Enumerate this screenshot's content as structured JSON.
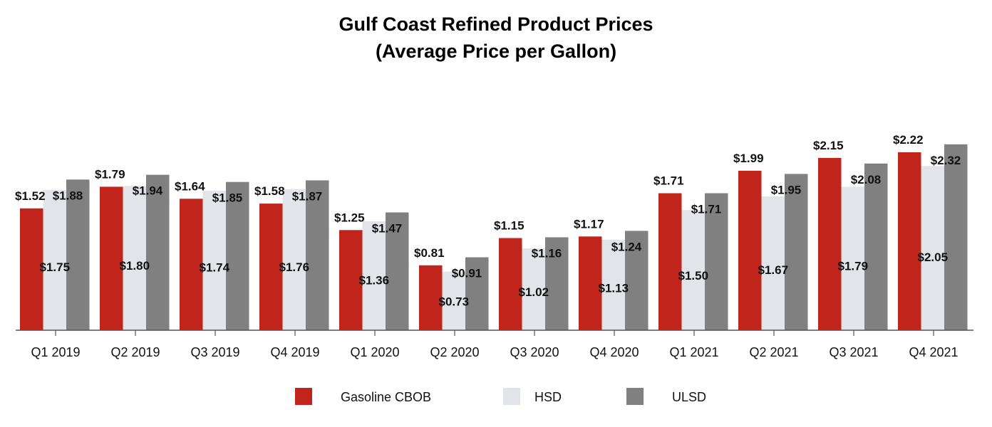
{
  "chart_data": {
    "type": "bar",
    "title": "Gulf Coast Refined Product Prices",
    "subtitle": "(Average Price per Gallon)",
    "xlabel": "",
    "ylabel": "",
    "ylim": [
      0,
      2.6
    ],
    "grid": false,
    "legend_position": "bottom",
    "categories": [
      "Q1 2019",
      "Q2 2019",
      "Q3 2019",
      "Q4 2019",
      "Q1 2020",
      "Q2 2020",
      "Q3 2020",
      "Q4 2020",
      "Q1 2021",
      "Q2 2021",
      "Q3 2021",
      "Q4 2021"
    ],
    "series": [
      {
        "name": "Gasoline CBOB",
        "color": "#c1241b",
        "values": [
          1.52,
          1.79,
          1.64,
          1.58,
          1.25,
          0.81,
          1.15,
          1.17,
          1.71,
          1.99,
          2.15,
          2.22
        ],
        "labels": [
          "$1.52",
          "$1.79",
          "$1.64",
          "$1.58",
          "$1.25",
          "$0.81",
          "$1.15",
          "$1.17",
          "$1.71",
          "$1.99",
          "$2.15",
          "$2.22"
        ]
      },
      {
        "name": "HSD",
        "color": "#e3e4ea",
        "values": [
          1.75,
          1.8,
          1.74,
          1.76,
          1.36,
          0.73,
          1.02,
          1.13,
          1.5,
          1.67,
          1.79,
          2.05
        ],
        "labels": [
          "$1.75",
          "$1.80",
          "$1.74",
          "$1.76",
          "$1.36",
          "$0.73",
          "$1.02",
          "$1.13",
          "$1.50",
          "$1.67",
          "$1.79",
          "$2.05"
        ]
      },
      {
        "name": "ULSD",
        "color": "#808080",
        "values": [
          1.88,
          1.94,
          1.85,
          1.87,
          1.47,
          0.91,
          1.16,
          1.24,
          1.71,
          1.95,
          2.08,
          2.32
        ],
        "labels": [
          "$1.88",
          "$1.94",
          "$1.85",
          "$1.87",
          "$1.47",
          "$0.91",
          "$1.16",
          "$1.24",
          "$1.71",
          "$1.95",
          "$2.08",
          "$2.32"
        ]
      }
    ]
  }
}
